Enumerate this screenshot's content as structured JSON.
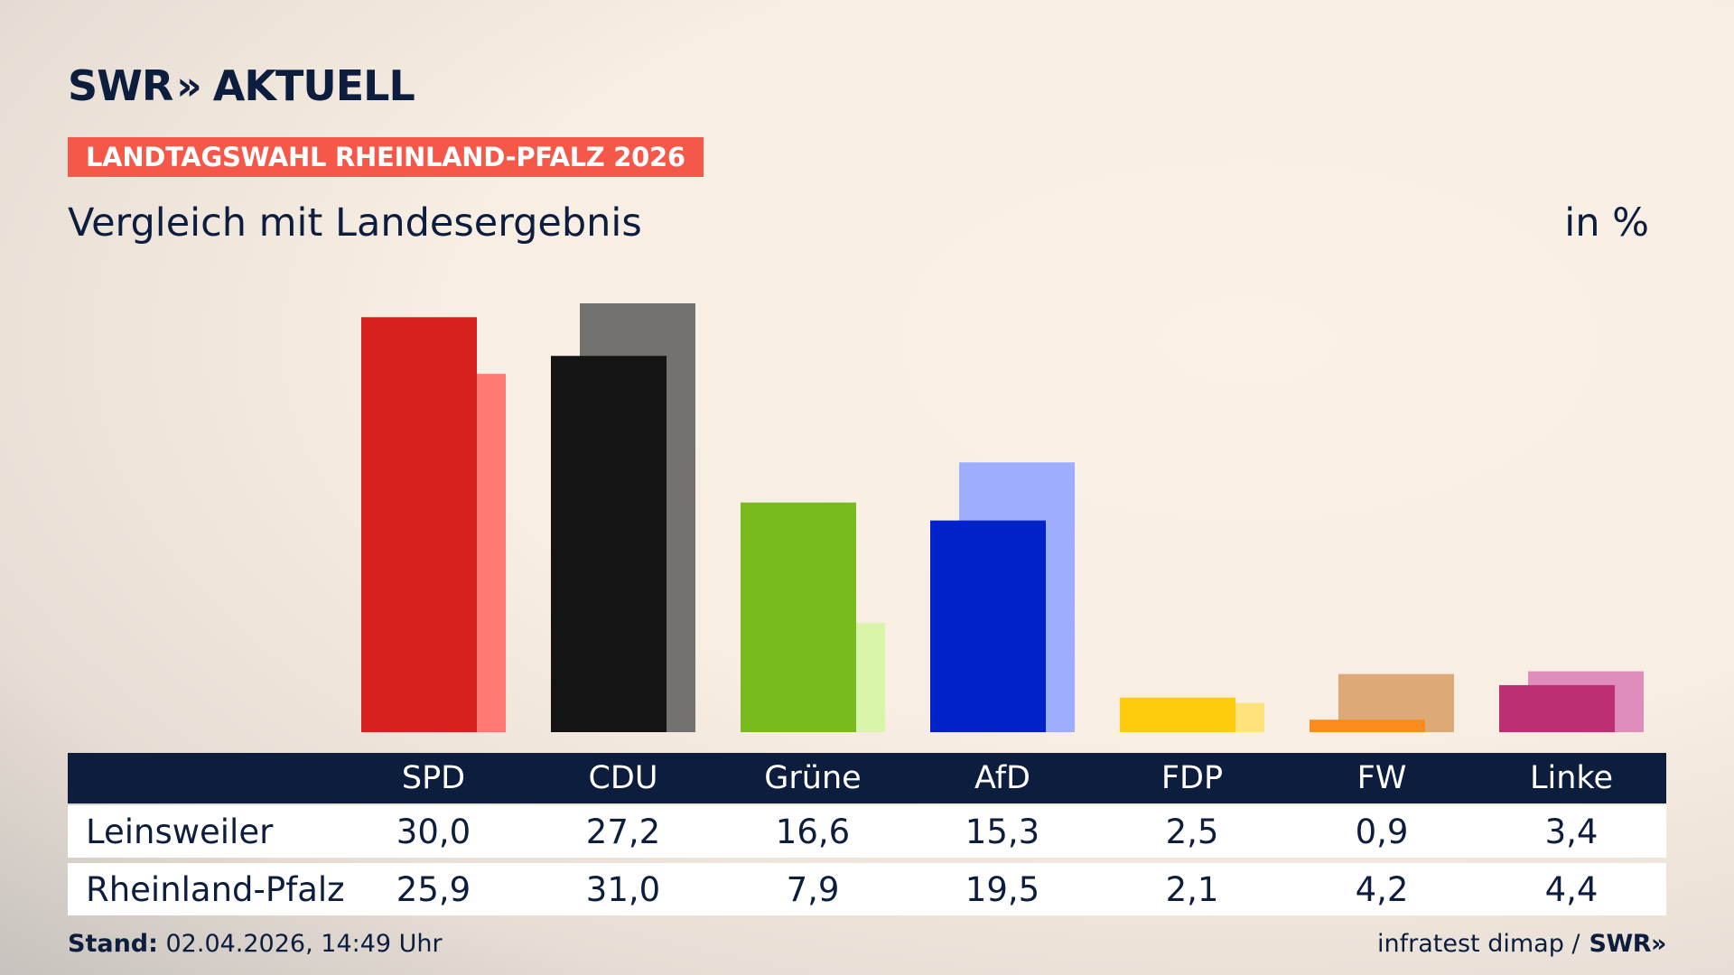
{
  "header": {
    "brand": "SWR",
    "brand_chevrons": "»",
    "product": "AKTUELL",
    "tag": "LANDTAGSWAHL RHEINLAND-PFALZ 2026",
    "subtitle": "Vergleich mit Landesergebnis",
    "unit": "in %"
  },
  "colors": {
    "background": "#f8eee3",
    "navy": "#0c1d3e",
    "tag": "#f55849"
  },
  "chart_data": {
    "type": "bar",
    "categories": [
      "SPD",
      "CDU",
      "Grüne",
      "AfD",
      "FDP",
      "FW",
      "Linke"
    ],
    "series": [
      {
        "name": "Leinsweiler",
        "values": [
          30.0,
          27.2,
          16.6,
          15.3,
          2.5,
          0.9,
          3.4
        ]
      },
      {
        "name": "Rheinland-Pfalz",
        "values": [
          25.9,
          31.0,
          7.9,
          19.5,
          2.1,
          4.2,
          4.4
        ]
      }
    ],
    "colors_primary": [
      "#d72020",
      "#141414",
      "#79bb1e",
      "#0022c8",
      "#fecb0d",
      "#fa8c1e",
      "#bc2f73"
    ],
    "colors_secondary": [
      "#ff7871",
      "#74726f",
      "#d8f5aa",
      "#9fadff",
      "#ffe27a",
      "#dda977",
      "#de8cba"
    ],
    "ylim": [
      0,
      31.0
    ],
    "grid": false
  },
  "table": {
    "row_labels": [
      "Leinsweiler",
      "Rheinland-Pfalz"
    ],
    "row1_values": [
      "30,0",
      "27,2",
      "16,6",
      "15,3",
      "2,5",
      "0,9",
      "3,4"
    ],
    "row2_values": [
      "25,9",
      "31,0",
      "7,9",
      "19,5",
      "2,1",
      "4,2",
      "4,4"
    ]
  },
  "footer": {
    "stand_label": "Stand:",
    "stand_value": " 02.04.2026, 14:49 Uhr",
    "source": "infratest dimap /",
    "source_brand": "SWR»"
  }
}
